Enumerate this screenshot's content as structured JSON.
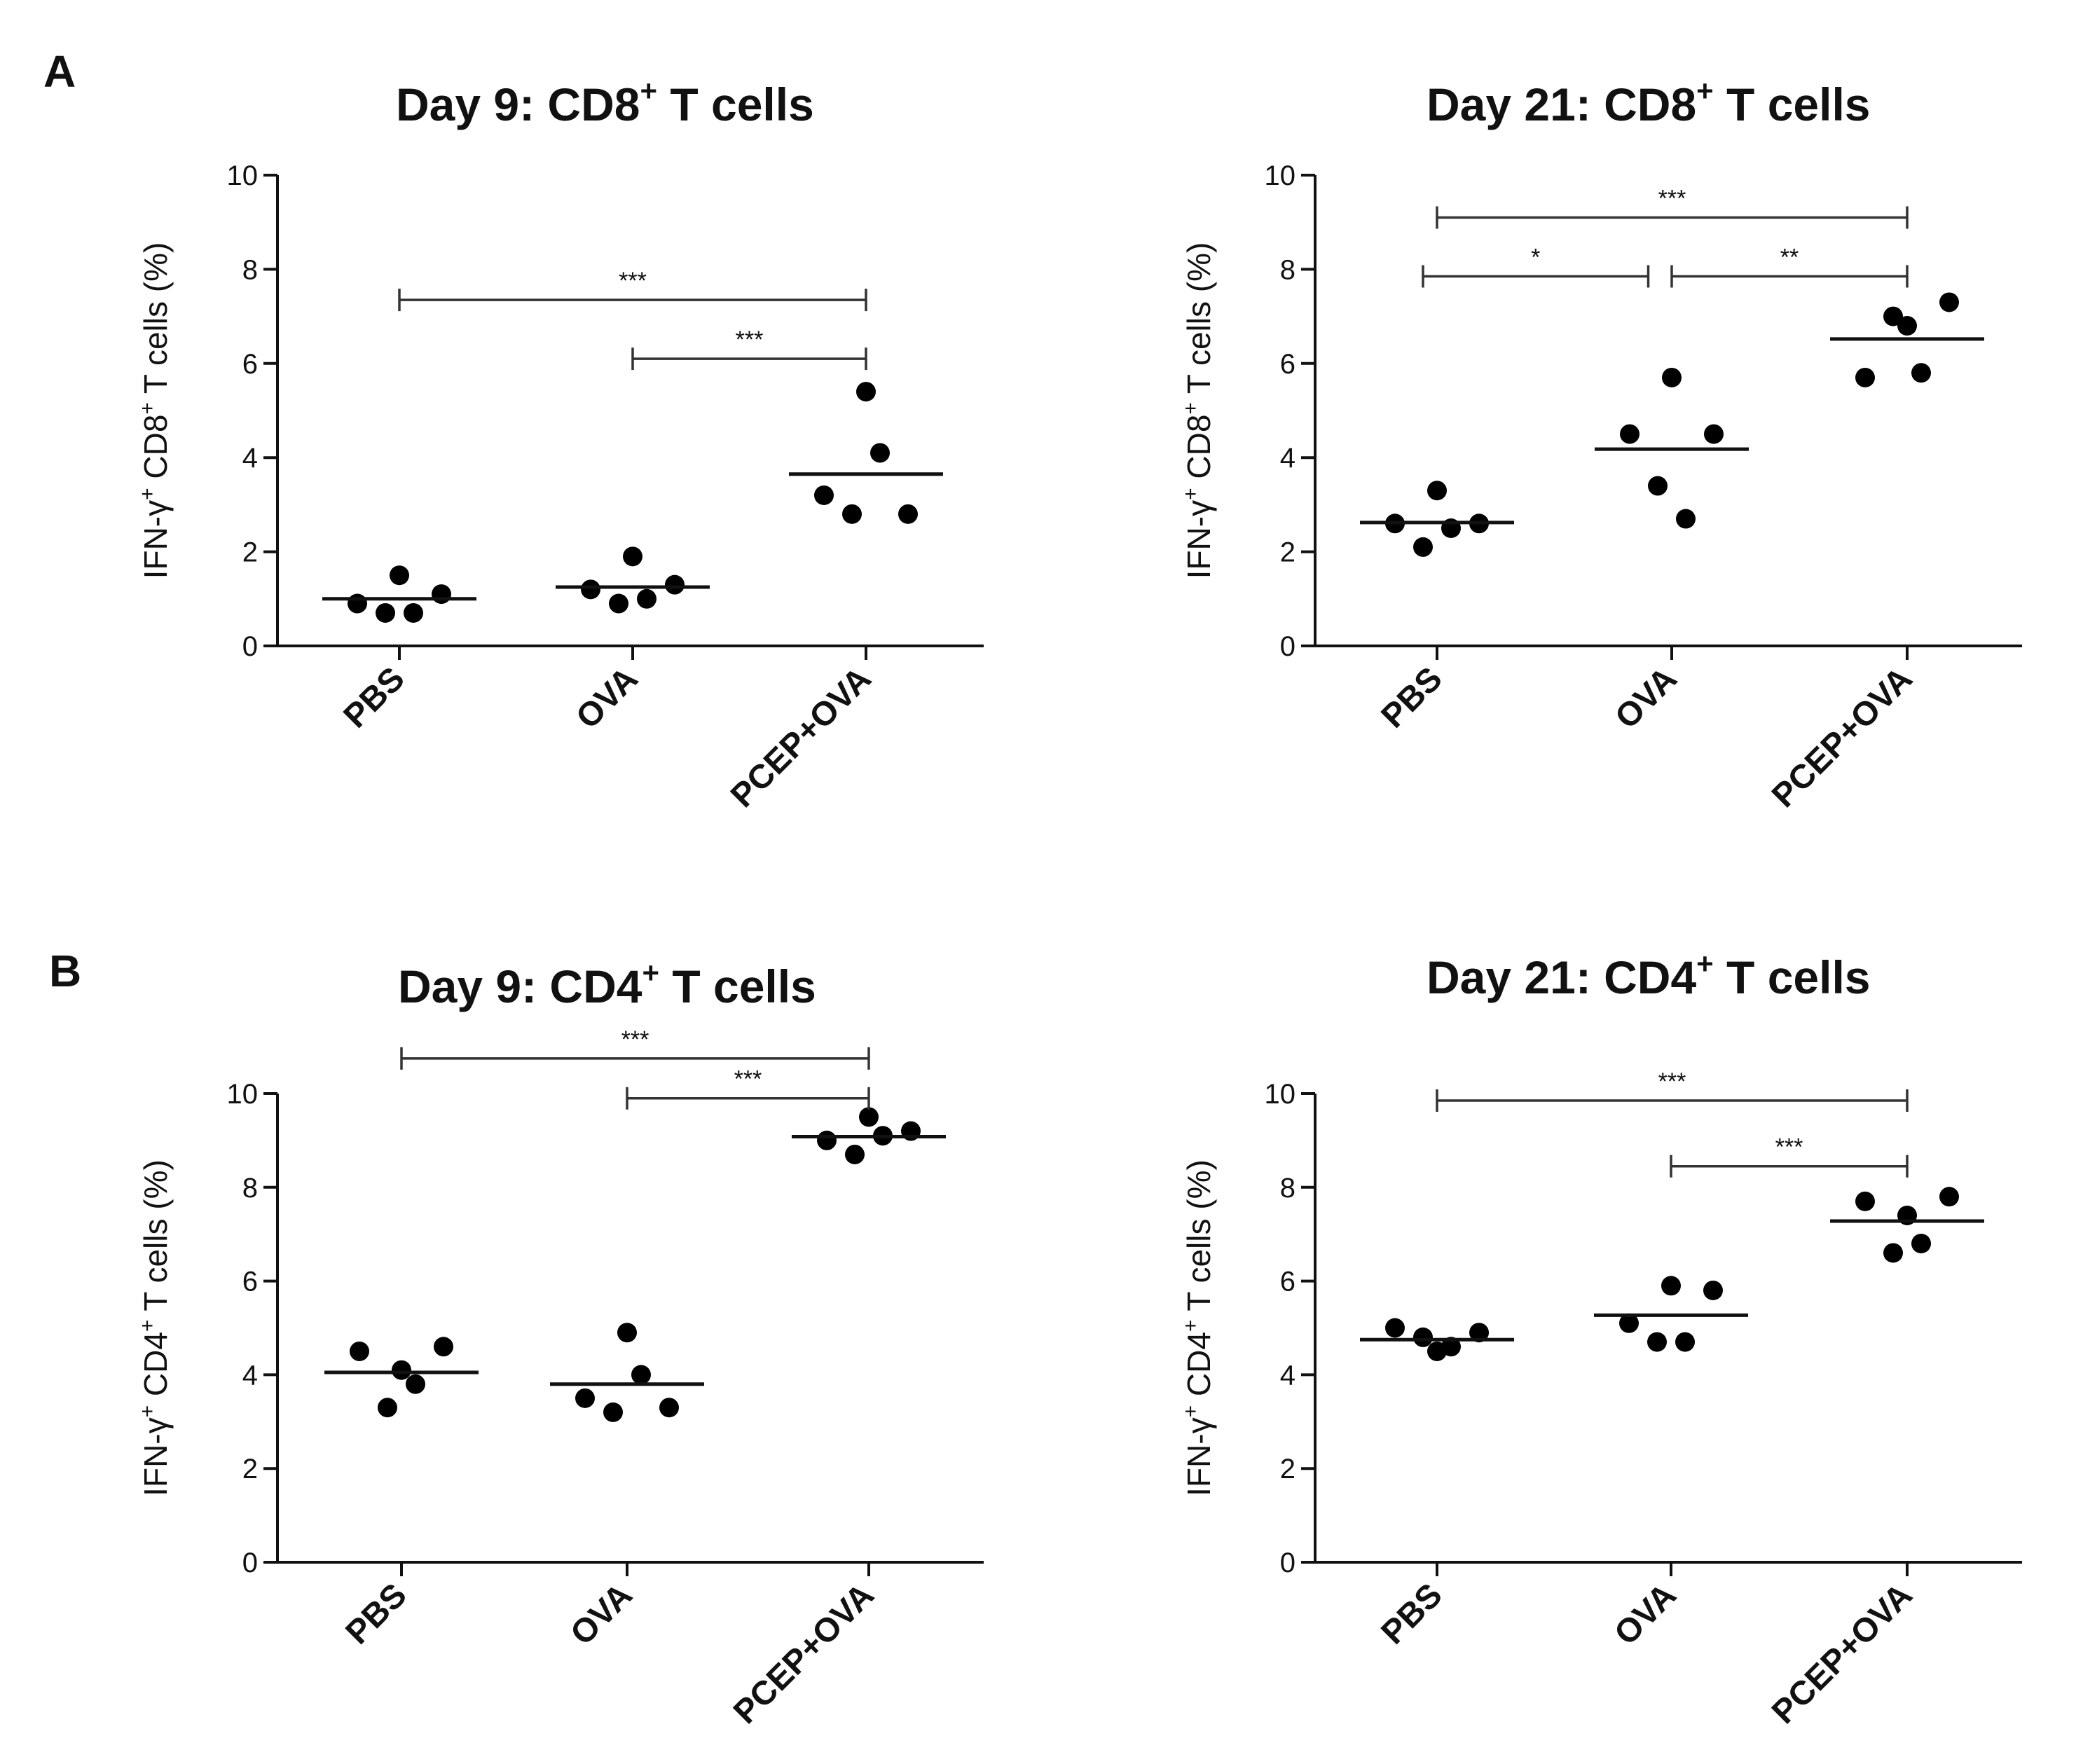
{
  "panel_letters": {
    "a": "A",
    "b": "B"
  },
  "chart_data": [
    {
      "type": "scatter",
      "title_main": "Day  9: CD8",
      "title_sup": "+",
      "title_tail": " T cells",
      "ylabel_parts": [
        "IFN-γ",
        "+",
        " CD8",
        "+",
        " T cells (%)"
      ],
      "categories": [
        "PBS",
        "OVA",
        "PCEP+OVA"
      ],
      "ylim": [
        0,
        10
      ],
      "yticks": [
        0,
        2,
        4,
        6,
        8,
        10
      ],
      "points": [
        [
          0.9,
          0.7,
          1.5,
          0.7,
          1.1
        ],
        [
          1.2,
          0.9,
          1.9,
          1.0,
          1.3
        ],
        [
          3.2,
          2.8,
          5.4,
          4.1,
          2.8
        ]
      ],
      "means": [
        1.0,
        1.25,
        3.65
      ],
      "brackets": [
        {
          "from": 0,
          "to": 2,
          "y": 7.35,
          "label": "***"
        },
        {
          "from": 1,
          "to": 2,
          "y": 6.1,
          "label": "***"
        }
      ]
    },
    {
      "type": "scatter",
      "title_main": "Day 21: CD8",
      "title_sup": "+",
      "title_tail": " T cells",
      "ylabel_parts": [
        "IFN-γ",
        "+",
        " CD8",
        "+",
        " T cells (%)"
      ],
      "categories": [
        "PBS",
        "OVA",
        "PCEP+OVA"
      ],
      "ylim": [
        0,
        10
      ],
      "yticks": [
        0,
        2,
        4,
        6,
        8,
        10
      ],
      "points": [
        [
          2.6,
          2.1,
          3.3,
          2.5,
          2.6
        ],
        [
          4.5,
          3.4,
          5.7,
          2.7,
          4.5
        ],
        [
          5.7,
          7.0,
          6.8,
          5.8,
          7.3
        ]
      ],
      "means": [
        2.62,
        4.18,
        6.52
      ],
      "brackets": [
        {
          "from": 0,
          "to": 2,
          "y": 9.1,
          "label": "***"
        },
        {
          "from": 0,
          "to": 0.9,
          "y": 7.85,
          "label": "*"
        },
        {
          "from": 1.0,
          "to": 2,
          "y": 7.85,
          "label": "**"
        }
      ]
    },
    {
      "type": "scatter",
      "title_main": "Day  9: CD4",
      "title_sup": "+",
      "title_tail": " T cells",
      "ylabel_parts": [
        "IFN-γ",
        "+",
        " CD4",
        "+",
        " T cells (%)"
      ],
      "categories": [
        "PBS",
        "OVA",
        "PCEP+OVA"
      ],
      "ylim": [
        0,
        10
      ],
      "yticks": [
        0,
        2,
        4,
        6,
        8,
        10
      ],
      "points": [
        [
          4.5,
          3.3,
          4.1,
          3.8,
          4.6
        ],
        [
          3.5,
          3.2,
          4.9,
          4.0,
          3.3
        ],
        [
          9.0,
          8.7,
          9.5,
          9.1,
          9.2
        ]
      ],
      "means": [
        4.05,
        3.8,
        9.08
      ],
      "brackets": [
        {
          "from": 0,
          "to": 2,
          "y": 10.75,
          "label": "***"
        },
        {
          "from": 1,
          "to": 2,
          "y": 9.9,
          "label": "***"
        }
      ]
    },
    {
      "type": "scatter",
      "title_main": "Day 21: CD4",
      "title_sup": "+",
      "title_tail": " T cells",
      "ylabel_parts": [
        "IFN-γ",
        "+",
        " CD4",
        "+",
        " T cells (%)"
      ],
      "categories": [
        "PBS",
        "OVA",
        "PCEP+OVA"
      ],
      "ylim": [
        0,
        10
      ],
      "yticks": [
        0,
        2,
        4,
        6,
        8,
        10
      ],
      "points": [
        [
          5.0,
          4.8,
          4.5,
          4.6,
          4.9
        ],
        [
          5.1,
          4.7,
          5.9,
          4.7,
          5.8
        ],
        [
          7.7,
          6.6,
          7.4,
          6.8,
          7.8
        ]
      ],
      "means": [
        4.75,
        5.27,
        7.28
      ],
      "brackets": [
        {
          "from": 0,
          "to": 2,
          "y": 9.85,
          "label": "***"
        },
        {
          "from": 1,
          "to": 2,
          "y": 8.45,
          "label": "***"
        }
      ]
    }
  ]
}
